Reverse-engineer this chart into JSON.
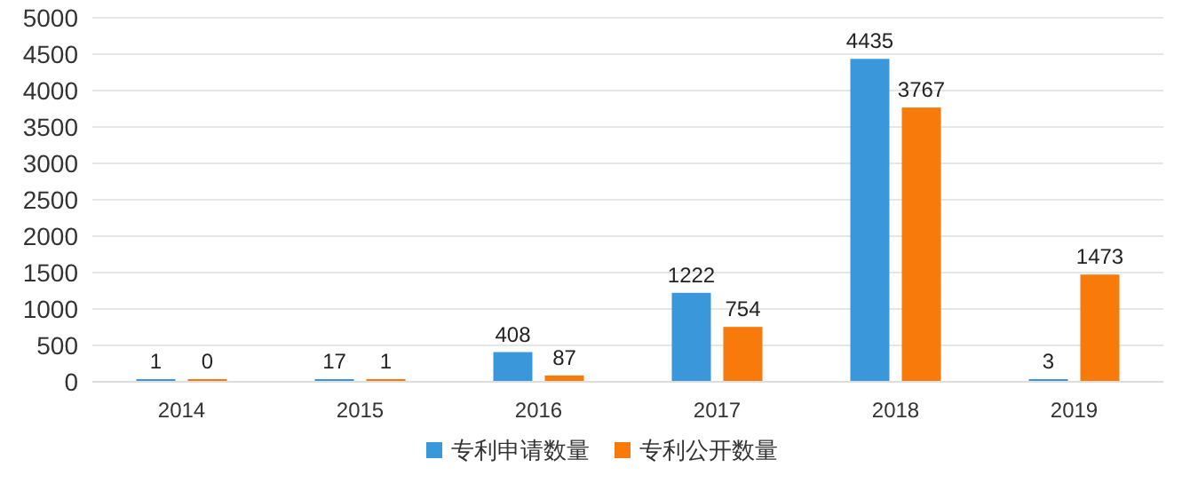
{
  "chart_data": {
    "type": "bar",
    "categories": [
      "2014",
      "2015",
      "2016",
      "2017",
      "2018",
      "2019"
    ],
    "series": [
      {
        "name": "专利申请数量",
        "color": "#3a97d9",
        "values": [
          1,
          17,
          408,
          1222,
          4435,
          3
        ]
      },
      {
        "name": "专利公开数量",
        "color": "#f77a0b",
        "values": [
          0,
          1,
          87,
          754,
          3767,
          1473
        ]
      }
    ],
    "ylim": [
      0,
      5000
    ],
    "yticks": [
      0,
      500,
      1000,
      1500,
      2000,
      2500,
      3000,
      3500,
      4000,
      4500,
      5000
    ],
    "grid": "y",
    "legend": "bottom",
    "data_labels": true
  }
}
